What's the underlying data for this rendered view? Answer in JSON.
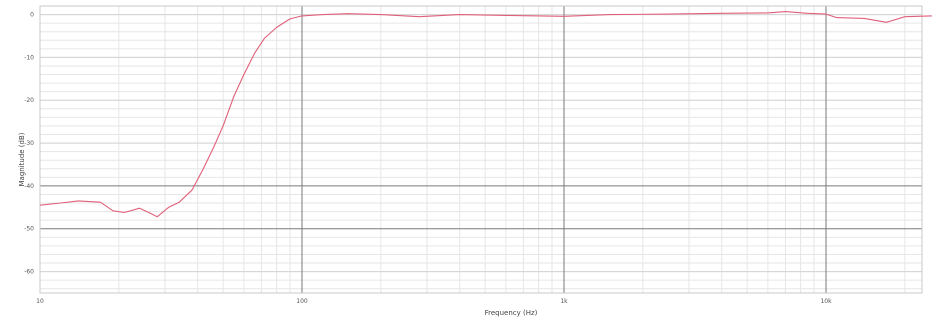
{
  "chart_data": {
    "type": "line",
    "xscale": "log",
    "xlabel": "Frequency (Hz)",
    "ylabel": "Magnitude (dB)",
    "xlim": [
      10,
      33000
    ],
    "ylim": [
      -65,
      2
    ],
    "grid": true,
    "x_ticks": [
      {
        "value": 10,
        "label": "10"
      },
      {
        "value": 100,
        "label": "100"
      },
      {
        "value": 1000,
        "label": "1k"
      },
      {
        "value": 10000,
        "label": "10k"
      }
    ],
    "y_ticks": [
      {
        "value": 0,
        "label": "0"
      },
      {
        "value": -10,
        "label": "-10"
      },
      {
        "value": -20,
        "label": "-20"
      },
      {
        "value": -30,
        "label": "-30"
      },
      {
        "value": -40,
        "label": "-40"
      },
      {
        "value": -50,
        "label": "-50"
      },
      {
        "value": -60,
        "label": "-60"
      }
    ],
    "major_y_lines": [
      -40,
      -50
    ],
    "series": [
      {
        "color": "#e0607a",
        "points": [
          [
            10,
            -44.5
          ],
          [
            12,
            -44
          ],
          [
            14,
            -43.5
          ],
          [
            17,
            -43.8
          ],
          [
            19,
            -45.8
          ],
          [
            21,
            -46.2
          ],
          [
            24,
            -45.2
          ],
          [
            26,
            -46.2
          ],
          [
            28,
            -47.2
          ],
          [
            31,
            -45
          ],
          [
            34,
            -43.8
          ],
          [
            38,
            -41
          ],
          [
            42,
            -36
          ],
          [
            46,
            -31
          ],
          [
            50,
            -26
          ],
          [
            55,
            -19
          ],
          [
            60,
            -14
          ],
          [
            66,
            -9
          ],
          [
            72,
            -5.5
          ],
          [
            80,
            -3
          ],
          [
            90,
            -1
          ],
          [
            100,
            -0.3
          ],
          [
            120,
            0
          ],
          [
            150,
            0.2
          ],
          [
            200,
            0
          ],
          [
            280,
            -0.5
          ],
          [
            400,
            0
          ],
          [
            600,
            -0.2
          ],
          [
            1000,
            -0.4
          ],
          [
            1500,
            0
          ],
          [
            2500,
            0.1
          ],
          [
            4000,
            0.3
          ],
          [
            6000,
            0.4
          ],
          [
            7000,
            0.7
          ],
          [
            8500,
            0.3
          ],
          [
            10000,
            0.1
          ],
          [
            11000,
            -0.7
          ],
          [
            14000,
            -0.9
          ],
          [
            17000,
            -1.8
          ],
          [
            20000,
            -0.5
          ],
          [
            25000,
            -0.3
          ],
          [
            33000,
            -0.6
          ]
        ]
      }
    ]
  }
}
